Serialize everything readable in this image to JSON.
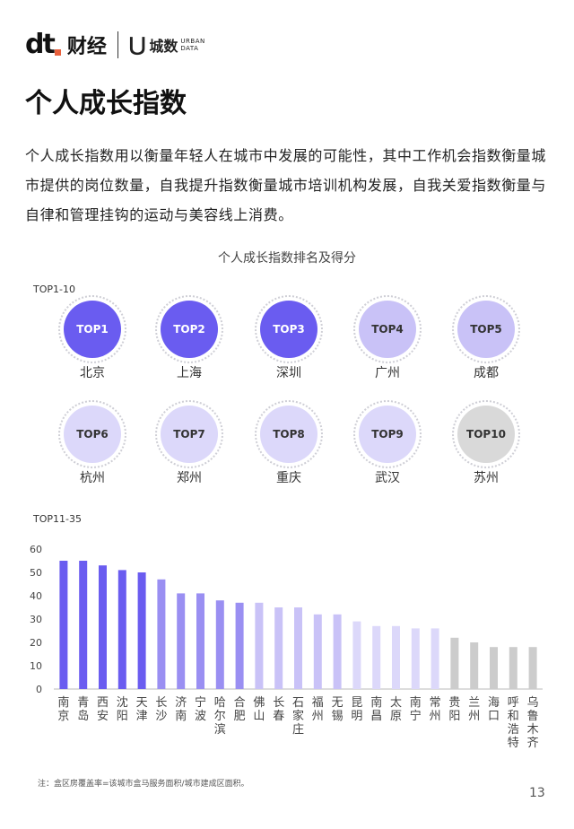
{
  "header": {
    "logo_dt": "dt",
    "logo_cj": "财经",
    "logo_ud_cn": "城数",
    "logo_ud_en1": "URBAN",
    "logo_ud_en2": "DATA"
  },
  "title": "个人成长指数",
  "description": "个人成长指数用以衡量年轻人在城市中发展的可能性，其中工作机会指数衡量城市提供的岗位数量，自我提升指数衡量城市培训机构发展，自我关爱指数衡量与自律和管理挂钩的运动与美容线上消费。",
  "chart_title": "个人成长指数排名及得分",
  "top10_label": "TOP1-10",
  "top10": [
    {
      "rank": "TOP1",
      "city": "北京"
    },
    {
      "rank": "TOP2",
      "city": "上海"
    },
    {
      "rank": "TOP3",
      "city": "深圳"
    },
    {
      "rank": "TOP4",
      "city": "广州"
    },
    {
      "rank": "TOP5",
      "city": "成都"
    },
    {
      "rank": "TOP6",
      "city": "杭州"
    },
    {
      "rank": "TOP7",
      "city": "郑州"
    },
    {
      "rank": "TOP8",
      "city": "重庆"
    },
    {
      "rank": "TOP9",
      "city": "武汉"
    },
    {
      "rank": "TOP10",
      "city": "苏州"
    }
  ],
  "top35_label": "TOP11-35",
  "colors": {
    "dark": "#6a5cf0",
    "mid": "#9a8ff2",
    "light": "#c9c2f7",
    "pale": "#dcd8fa",
    "gray": "#cccccc"
  },
  "chart_data": {
    "type": "bar",
    "categories": [
      "南京",
      "青岛",
      "西安",
      "沈阳",
      "天津",
      "长沙",
      "济南",
      "宁波",
      "哈尔滨",
      "合肥",
      "佛山",
      "长春",
      "石家庄",
      "福州",
      "无锡",
      "昆明",
      "南昌",
      "太原",
      "南宁",
      "常州",
      "贵阳",
      "兰州",
      "海口",
      "呼和浩特",
      "乌鲁木齐"
    ],
    "values": [
      55,
      55,
      53,
      51,
      50,
      47,
      41,
      41,
      38,
      37,
      37,
      35,
      35,
      32,
      32,
      29,
      27,
      27,
      26,
      26,
      22,
      20,
      18,
      18,
      18
    ],
    "yticks": [
      "0",
      "10",
      "20",
      "30",
      "40",
      "50",
      "60"
    ],
    "ylim": [
      0,
      60
    ]
  },
  "note": "注：盒区房覆盖率=该城市盒马服务面积/城市建成区面积。",
  "page_number": "13"
}
